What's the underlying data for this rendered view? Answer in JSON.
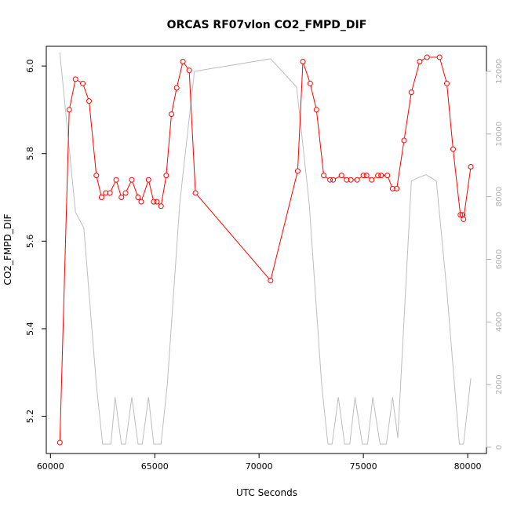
{
  "chart_data": {
    "type": "line",
    "title": "ORCAS RF07vlon CO2_FMPD_DIF",
    "xlabel": "UTC Seconds",
    "ylabel": "CO2_FMPD_DIF",
    "xlim": [
      59800,
      80900
    ],
    "ylim": [
      5.115,
      6.045
    ],
    "y2lim": [
      -200,
      12800
    ],
    "x_ticks": [
      60000,
      65000,
      70000,
      75000,
      80000
    ],
    "y_ticks": [
      5.2,
      5.4,
      5.6,
      5.8,
      6.0
    ],
    "y_tick_labels": [
      "5.2",
      "5.4",
      "5.6",
      "5.8",
      "6.0"
    ],
    "y2_ticks": [
      0,
      2000,
      4000,
      6000,
      8000,
      10000,
      12000
    ],
    "grid": false,
    "colors": {
      "primary": "#ff0000",
      "secondary": "#bebebe"
    },
    "series": [
      {
        "axis": "left",
        "style": "line+points",
        "x": [
          60450,
          60900,
          61200,
          61550,
          61850,
          62200,
          62450,
          62650,
          62850,
          63150,
          63400,
          63600,
          63900,
          64200,
          64350,
          64700,
          64950,
          65100,
          65300,
          65550,
          65800,
          66050,
          66350,
          66650,
          66950,
          70550,
          71850,
          72100,
          72450,
          72750,
          73100,
          73400,
          73550,
          73950,
          74200,
          74400,
          74700,
          75000,
          75150,
          75400,
          75700,
          75850,
          76150,
          76400,
          76600,
          76950,
          77300,
          77700,
          78050,
          78650,
          79000,
          79300,
          79650,
          79750,
          79800,
          80150
        ],
        "y": [
          5.14,
          5.9,
          5.97,
          5.96,
          5.92,
          5.75,
          5.7,
          5.71,
          5.71,
          5.74,
          5.7,
          5.71,
          5.74,
          5.7,
          5.69,
          5.74,
          5.69,
          5.69,
          5.68,
          5.75,
          5.89,
          5.95,
          6.01,
          5.99,
          5.71,
          5.51,
          5.76,
          6.01,
          5.96,
          5.9,
          5.75,
          5.74,
          5.74,
          5.75,
          5.74,
          5.74,
          5.74,
          5.75,
          5.75,
          5.74,
          5.75,
          5.75,
          5.75,
          5.72,
          5.72,
          5.83,
          5.94,
          6.01,
          6.02,
          6.02,
          5.96,
          5.81,
          5.66,
          5.66,
          5.65,
          5.77
        ]
      },
      {
        "axis": "right",
        "style": "line",
        "x": [
          60450,
          61200,
          61600,
          62200,
          62500,
          62900,
          63100,
          63400,
          63600,
          63900,
          64200,
          64400,
          64700,
          64950,
          65300,
          65600,
          66200,
          66900,
          70550,
          71800,
          72400,
          73000,
          73300,
          73500,
          73800,
          74100,
          74350,
          74600,
          74950,
          75200,
          75450,
          75800,
          76100,
          76400,
          76650,
          77300,
          77600,
          78000,
          78500,
          79000,
          79600,
          79800,
          80150
        ],
        "y": [
          12600,
          7500,
          7000,
          2000,
          100,
          100,
          1600,
          100,
          100,
          1600,
          100,
          100,
          1600,
          100,
          100,
          2000,
          7800,
          12000,
          12400,
          11500,
          7800,
          2000,
          100,
          100,
          1600,
          100,
          100,
          1600,
          100,
          100,
          1600,
          100,
          100,
          1600,
          300,
          8500,
          8600,
          8700,
          8500,
          5000,
          100,
          100,
          2200
        ]
      }
    ]
  }
}
